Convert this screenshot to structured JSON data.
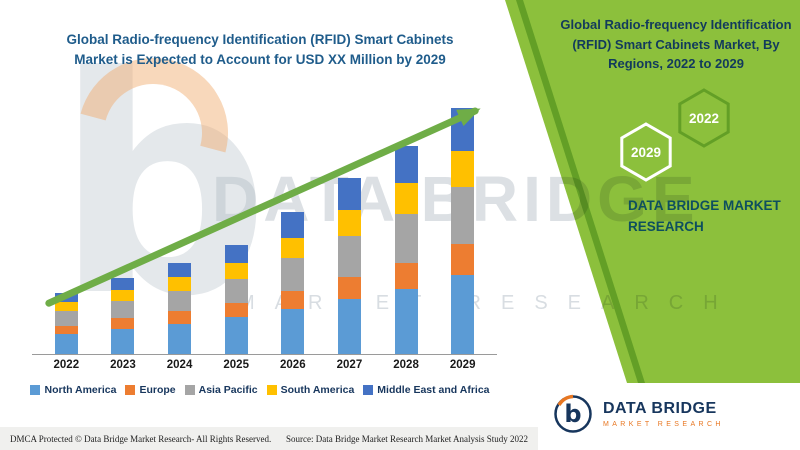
{
  "colors": {
    "green": "#8cc03c",
    "green-dark": "#639f26",
    "title-blue": "#1f5c8b",
    "right-title": "#123a5c",
    "brand-teal": "#0e4f5e",
    "navy": "#17365d",
    "orange": "#e87722",
    "arrow": "#6fad47",
    "wm": "#b9c2ca",
    "footer-bg": "#f0f0ee"
  },
  "left": {
    "title_line1": "Global Radio-frequency Identification (RFID) Smart Cabinets",
    "title_line2": "Market is Expected to Account for USD XX Million by 2029"
  },
  "chart_data": {
    "type": "bar",
    "stacked": true,
    "title": "Global Radio-frequency Identification (RFID) Smart Cabinets Market is Expected to Account for USD XX Million by 2029",
    "xlabel": "",
    "ylabel": "",
    "y_axis_labels_visible": false,
    "value_note": "USD Million (XX); segment values estimated from bar heights, no y-axis ticks shown",
    "categories": [
      "2022",
      "2023",
      "2024",
      "2025",
      "2026",
      "2027",
      "2028",
      "2029"
    ],
    "series": [
      {
        "name": "North America",
        "color": "#5B9BD5",
        "values": [
          10,
          12.5,
          15,
          18,
          22,
          27,
          32,
          39
        ]
      },
      {
        "name": "Europe",
        "color": "#ED7D31",
        "values": [
          4,
          5,
          6,
          7,
          9,
          11,
          13,
          15
        ]
      },
      {
        "name": "Asia Pacific",
        "color": "#A5A5A5",
        "values": [
          7,
          8.5,
          10,
          12,
          16,
          20,
          24,
          28
        ]
      },
      {
        "name": "South America",
        "color": "#FFC000",
        "values": [
          4.5,
          5.5,
          7,
          8,
          10,
          13,
          15,
          18
        ]
      },
      {
        "name": "Middle East and Africa",
        "color": "#4472C4",
        "values": [
          4.5,
          6,
          7,
          8.5,
          13,
          15.5,
          18.5,
          21
        ]
      }
    ],
    "legend_position": "bottom",
    "grid": false,
    "trend_arrow": true
  },
  "right_panel": {
    "title_lines": [
      "Global Radio-frequency Identification",
      "(RFID) Smart Cabinets Market, By",
      "Regions, 2022 to 2029"
    ],
    "hexagons": [
      {
        "label": "2029"
      },
      {
        "label": "2022"
      }
    ],
    "brand_lines": [
      "DATA BRIDGE MARKET",
      "RESEARCH"
    ]
  },
  "watermark": {
    "letter": "b",
    "brand": "DATA BRIDGE",
    "sub": "MARKET RESEARCH"
  },
  "logo": {
    "letter": "b",
    "name": "DATA BRIDGE",
    "sub": "MARKET RESEARCH"
  },
  "footer": {
    "left": "DMCA Protected © Data Bridge Market Research- All Rights Reserved.",
    "right": "Source: Data Bridge Market Research Market Analysis Study 2022"
  }
}
